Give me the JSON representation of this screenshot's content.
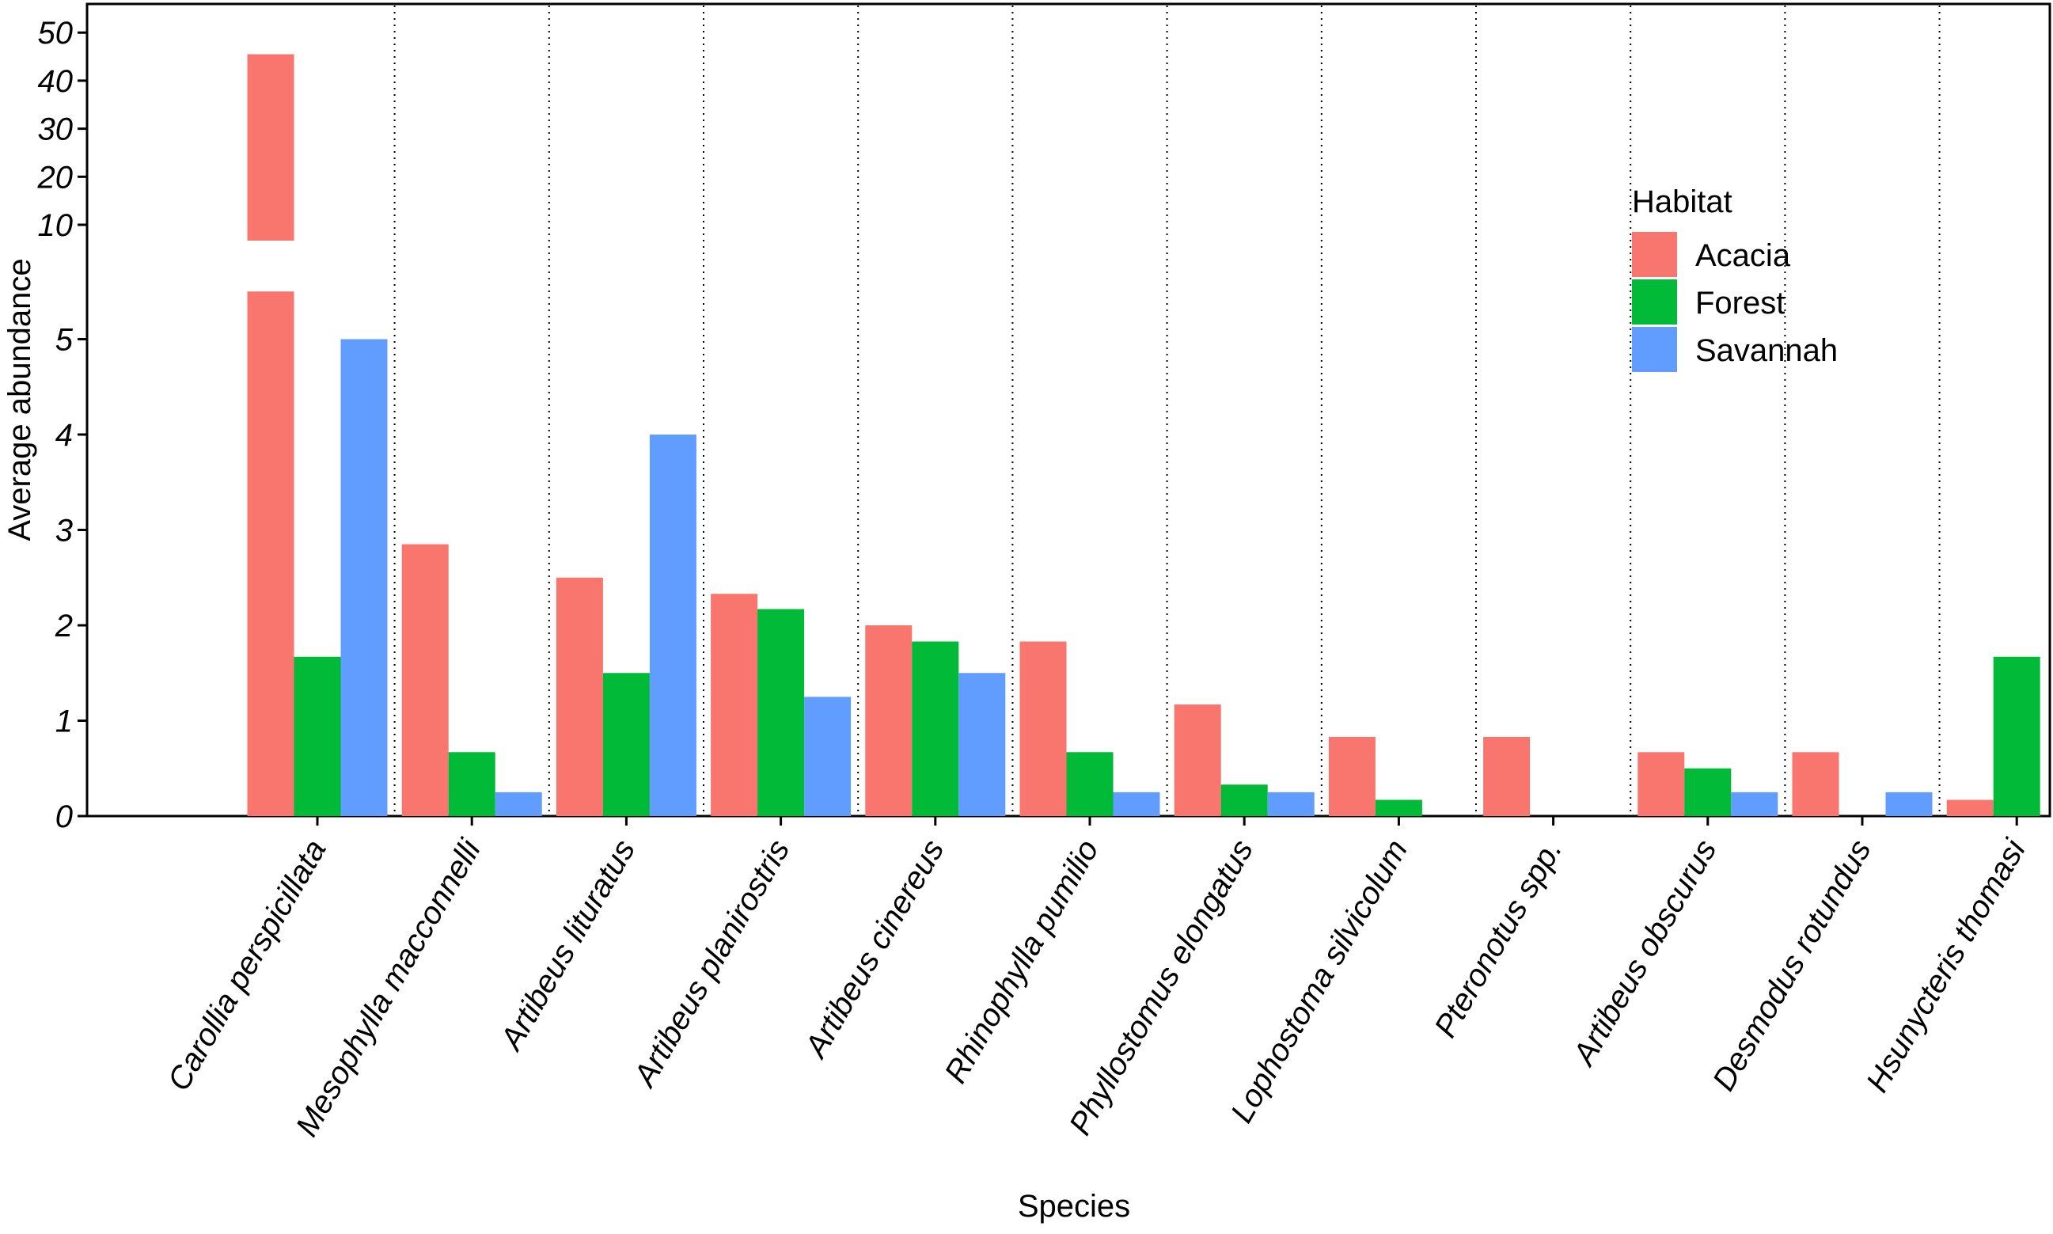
{
  "chart_data": {
    "type": "bar",
    "xlabel": "Species",
    "ylabel": "Average abundance",
    "categories": [
      "Carollia perspicillata",
      "Mesophylla macconnelli",
      "Artibeus lituratus",
      "Artibeus planirostris",
      "Artibeus cinereus",
      "Rhinophylla pumilio",
      "Phyllostomus elongatus",
      "Lophostoma silvicolum",
      "Pteronotus spp.",
      "Artibeus obscurus",
      "Desmodus rotundus",
      "Hsunycteris thomasi"
    ],
    "series": [
      {
        "name": "Acacia",
        "color": "#F8766D",
        "values": [
          45.5,
          2.85,
          2.5,
          2.33,
          2.0,
          1.83,
          1.17,
          0.83,
          0.83,
          0.67,
          0.67,
          0.17
        ]
      },
      {
        "name": "Forest",
        "color": "#00BA38",
        "values": [
          1.67,
          0.67,
          1.5,
          2.17,
          1.83,
          0.67,
          0.33,
          0.17,
          0,
          0.5,
          0,
          1.67
        ]
      },
      {
        "name": "Savannah",
        "color": "#619CFF",
        "values": [
          5.0,
          0.25,
          4.0,
          1.25,
          1.5,
          0.25,
          0.25,
          0,
          0,
          0.25,
          0.25,
          0
        ]
      }
    ],
    "yaxis": {
      "break": true,
      "lower_range": [
        0,
        5.5
      ],
      "upper_range": [
        10,
        50
      ],
      "ticks_lower": [
        "0",
        "1",
        "2",
        "3",
        "4",
        "5"
      ],
      "ticks_upper": [
        "10",
        "20",
        "30",
        "40",
        "50"
      ]
    },
    "legend": {
      "title": "Habitat",
      "position": "top-right"
    },
    "grid": false,
    "separators": "dotted vertical lines between species"
  }
}
